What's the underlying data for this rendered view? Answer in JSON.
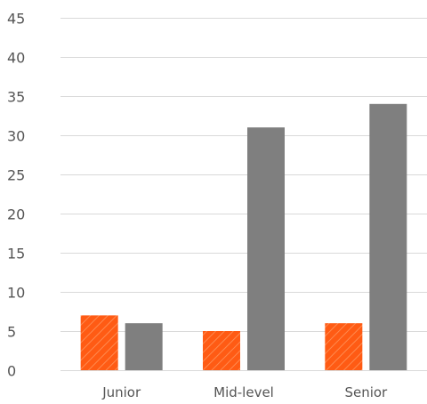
{
  "chart_data": {
    "type": "bar",
    "title": "",
    "xlabel": "",
    "ylabel": "",
    "categories": [
      "Junior",
      "Mid-level",
      "Senior"
    ],
    "ylim": [
      0,
      45
    ],
    "yticks": [
      0,
      5,
      10,
      15,
      20,
      25,
      30,
      35,
      40,
      45
    ],
    "grid": true,
    "legend": "none",
    "series": [
      {
        "values": [
          7,
          5,
          6
        ],
        "color": "#FF5B14",
        "pattern": "diagonal-hatch"
      },
      {
        "values": [
          6,
          31,
          34
        ],
        "color": "#7F7F7F",
        "pattern": "solid"
      }
    ]
  }
}
